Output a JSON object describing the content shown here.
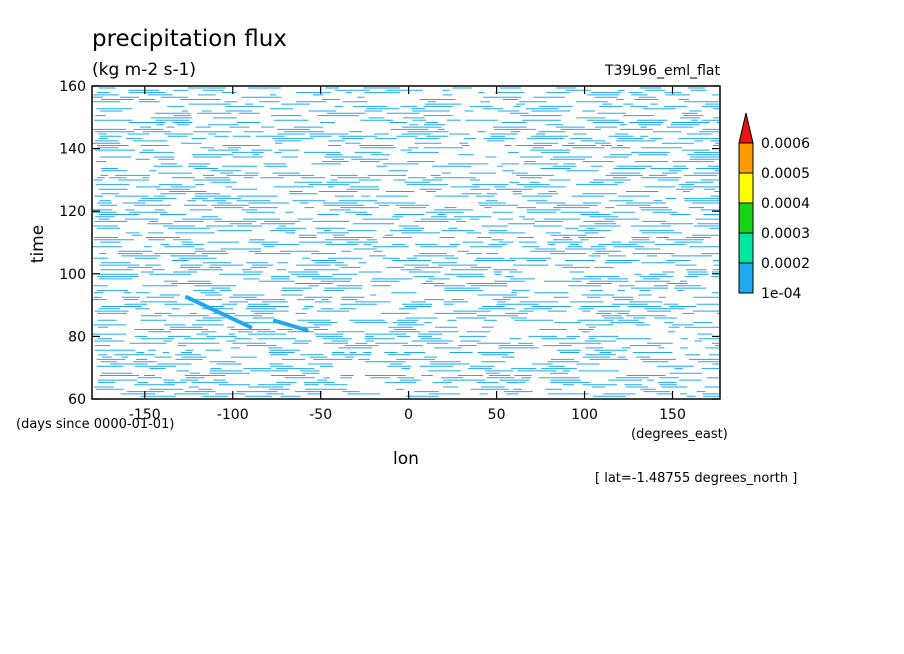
{
  "chart_data": {
    "type": "heatmap",
    "title": "precipitation flux",
    "units": "(kg m-2 s-1)",
    "experiment": "T39L96_eml_flat",
    "xlabel": "lon",
    "x_units": "(degrees_east)",
    "ylabel": "time",
    "y_units": "(days since 0000-01-01)",
    "slice_note": "[ lat=-1.48755 degrees_north ]",
    "xlim": [
      -180,
      177
    ],
    "ylim": [
      60,
      160
    ],
    "x_ticks": [
      -150,
      -100,
      -50,
      0,
      50,
      100,
      150
    ],
    "y_ticks": [
      60,
      80,
      100,
      120,
      140,
      160
    ],
    "grid": false,
    "colorbar": {
      "position": "right",
      "levels": [
        "1e-04",
        "0.0002",
        "0.0003",
        "0.0004",
        "0.0005",
        "0.0006"
      ],
      "colors": [
        "#1ea8f0",
        "#00e6a0",
        "#17d417",
        "#ffff00",
        "#ff9a00",
        "#e61414"
      ],
      "extend": "max"
    },
    "features": [
      {
        "kind": "streak",
        "lon": [
          -126,
          -90
        ],
        "time": [
          92.5,
          83
        ]
      },
      {
        "kind": "streak",
        "lon": [
          -76,
          -58
        ],
        "time": [
          85,
          82
        ]
      }
    ]
  }
}
